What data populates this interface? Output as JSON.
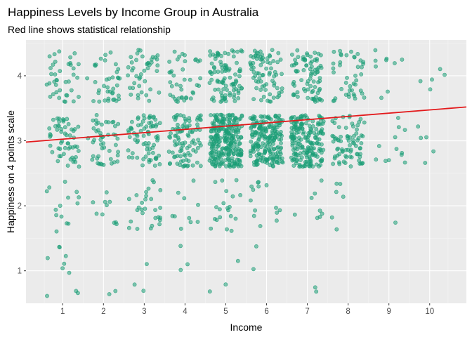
{
  "chart_data": {
    "type": "scatter",
    "title": "Happiness Levels by Income Group in Australia",
    "subtitle": "Red line shows statistical relationship",
    "xlabel": "Income",
    "ylabel": "Happiness on 4 points scale",
    "x_ticks": [
      1,
      2,
      3,
      4,
      5,
      6,
      7,
      8,
      9,
      10
    ],
    "y_ticks": [
      1,
      2,
      3,
      4
    ],
    "xlim": [
      0.1,
      10.9
    ],
    "ylim": [
      0.5,
      4.55
    ],
    "grid": true,
    "jitter": {
      "x": 0.4,
      "y": 0.4
    },
    "point_color": "#1b9e77",
    "line_color": "#e31a1c",
    "panel_background": "#ebebeb",
    "counts": {
      "1": {
        "1": 10,
        "2": 14,
        "3": 55,
        "4": 38
      },
      "2": {
        "1": 2,
        "2": 10,
        "3": 48,
        "4": 38
      },
      "3": {
        "1": 3,
        "2": 28,
        "3": 72,
        "4": 42
      },
      "4": {
        "1": 3,
        "2": 10,
        "3": 95,
        "4": 40
      },
      "5": {
        "1": 3,
        "2": 20,
        "3": 260,
        "4": 95
      },
      "6": {
        "1": 2,
        "2": 14,
        "3": 210,
        "4": 75
      },
      "7": {
        "1": 2,
        "2": 8,
        "3": 190,
        "4": 80
      },
      "8": {
        "1": 0,
        "2": 6,
        "3": 75,
        "4": 42
      },
      "9": {
        "1": 0,
        "2": 1,
        "3": 12,
        "4": 9
      },
      "10": {
        "1": 0,
        "2": 0,
        "3": 5,
        "4": 5
      }
    },
    "trend": {
      "x": [
        0.1,
        10.9
      ],
      "y": [
        2.98,
        3.52
      ]
    }
  }
}
